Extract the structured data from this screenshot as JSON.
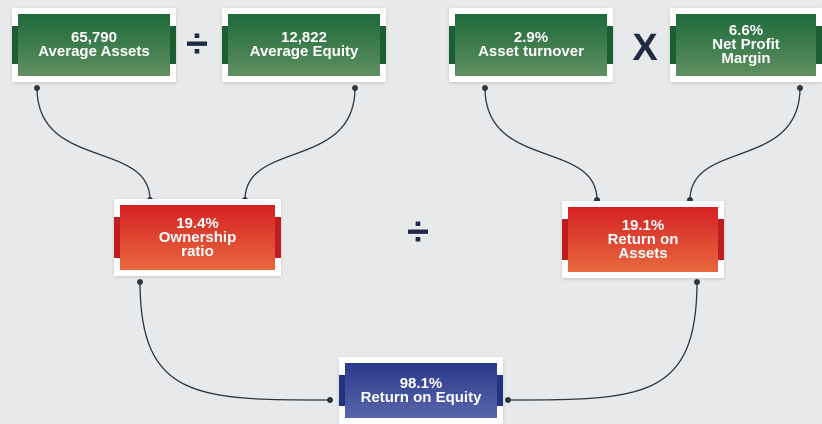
{
  "nodes": [
    {
      "value": "65,790",
      "label": "Average Assets"
    },
    {
      "value": "12,822",
      "label": "Average Equity"
    },
    {
      "value": "2.9%",
      "label": "Asset turnover"
    },
    {
      "value": "6.6%",
      "label": "Net Profit Margin"
    },
    {
      "value": "19.4%",
      "label": "Ownership ratio"
    },
    {
      "value": "19.1%",
      "label": "Return on Assets"
    },
    {
      "value": "98.1%",
      "label": "Return on Equity"
    }
  ],
  "operators": [
    "÷",
    "X",
    "÷"
  ]
}
